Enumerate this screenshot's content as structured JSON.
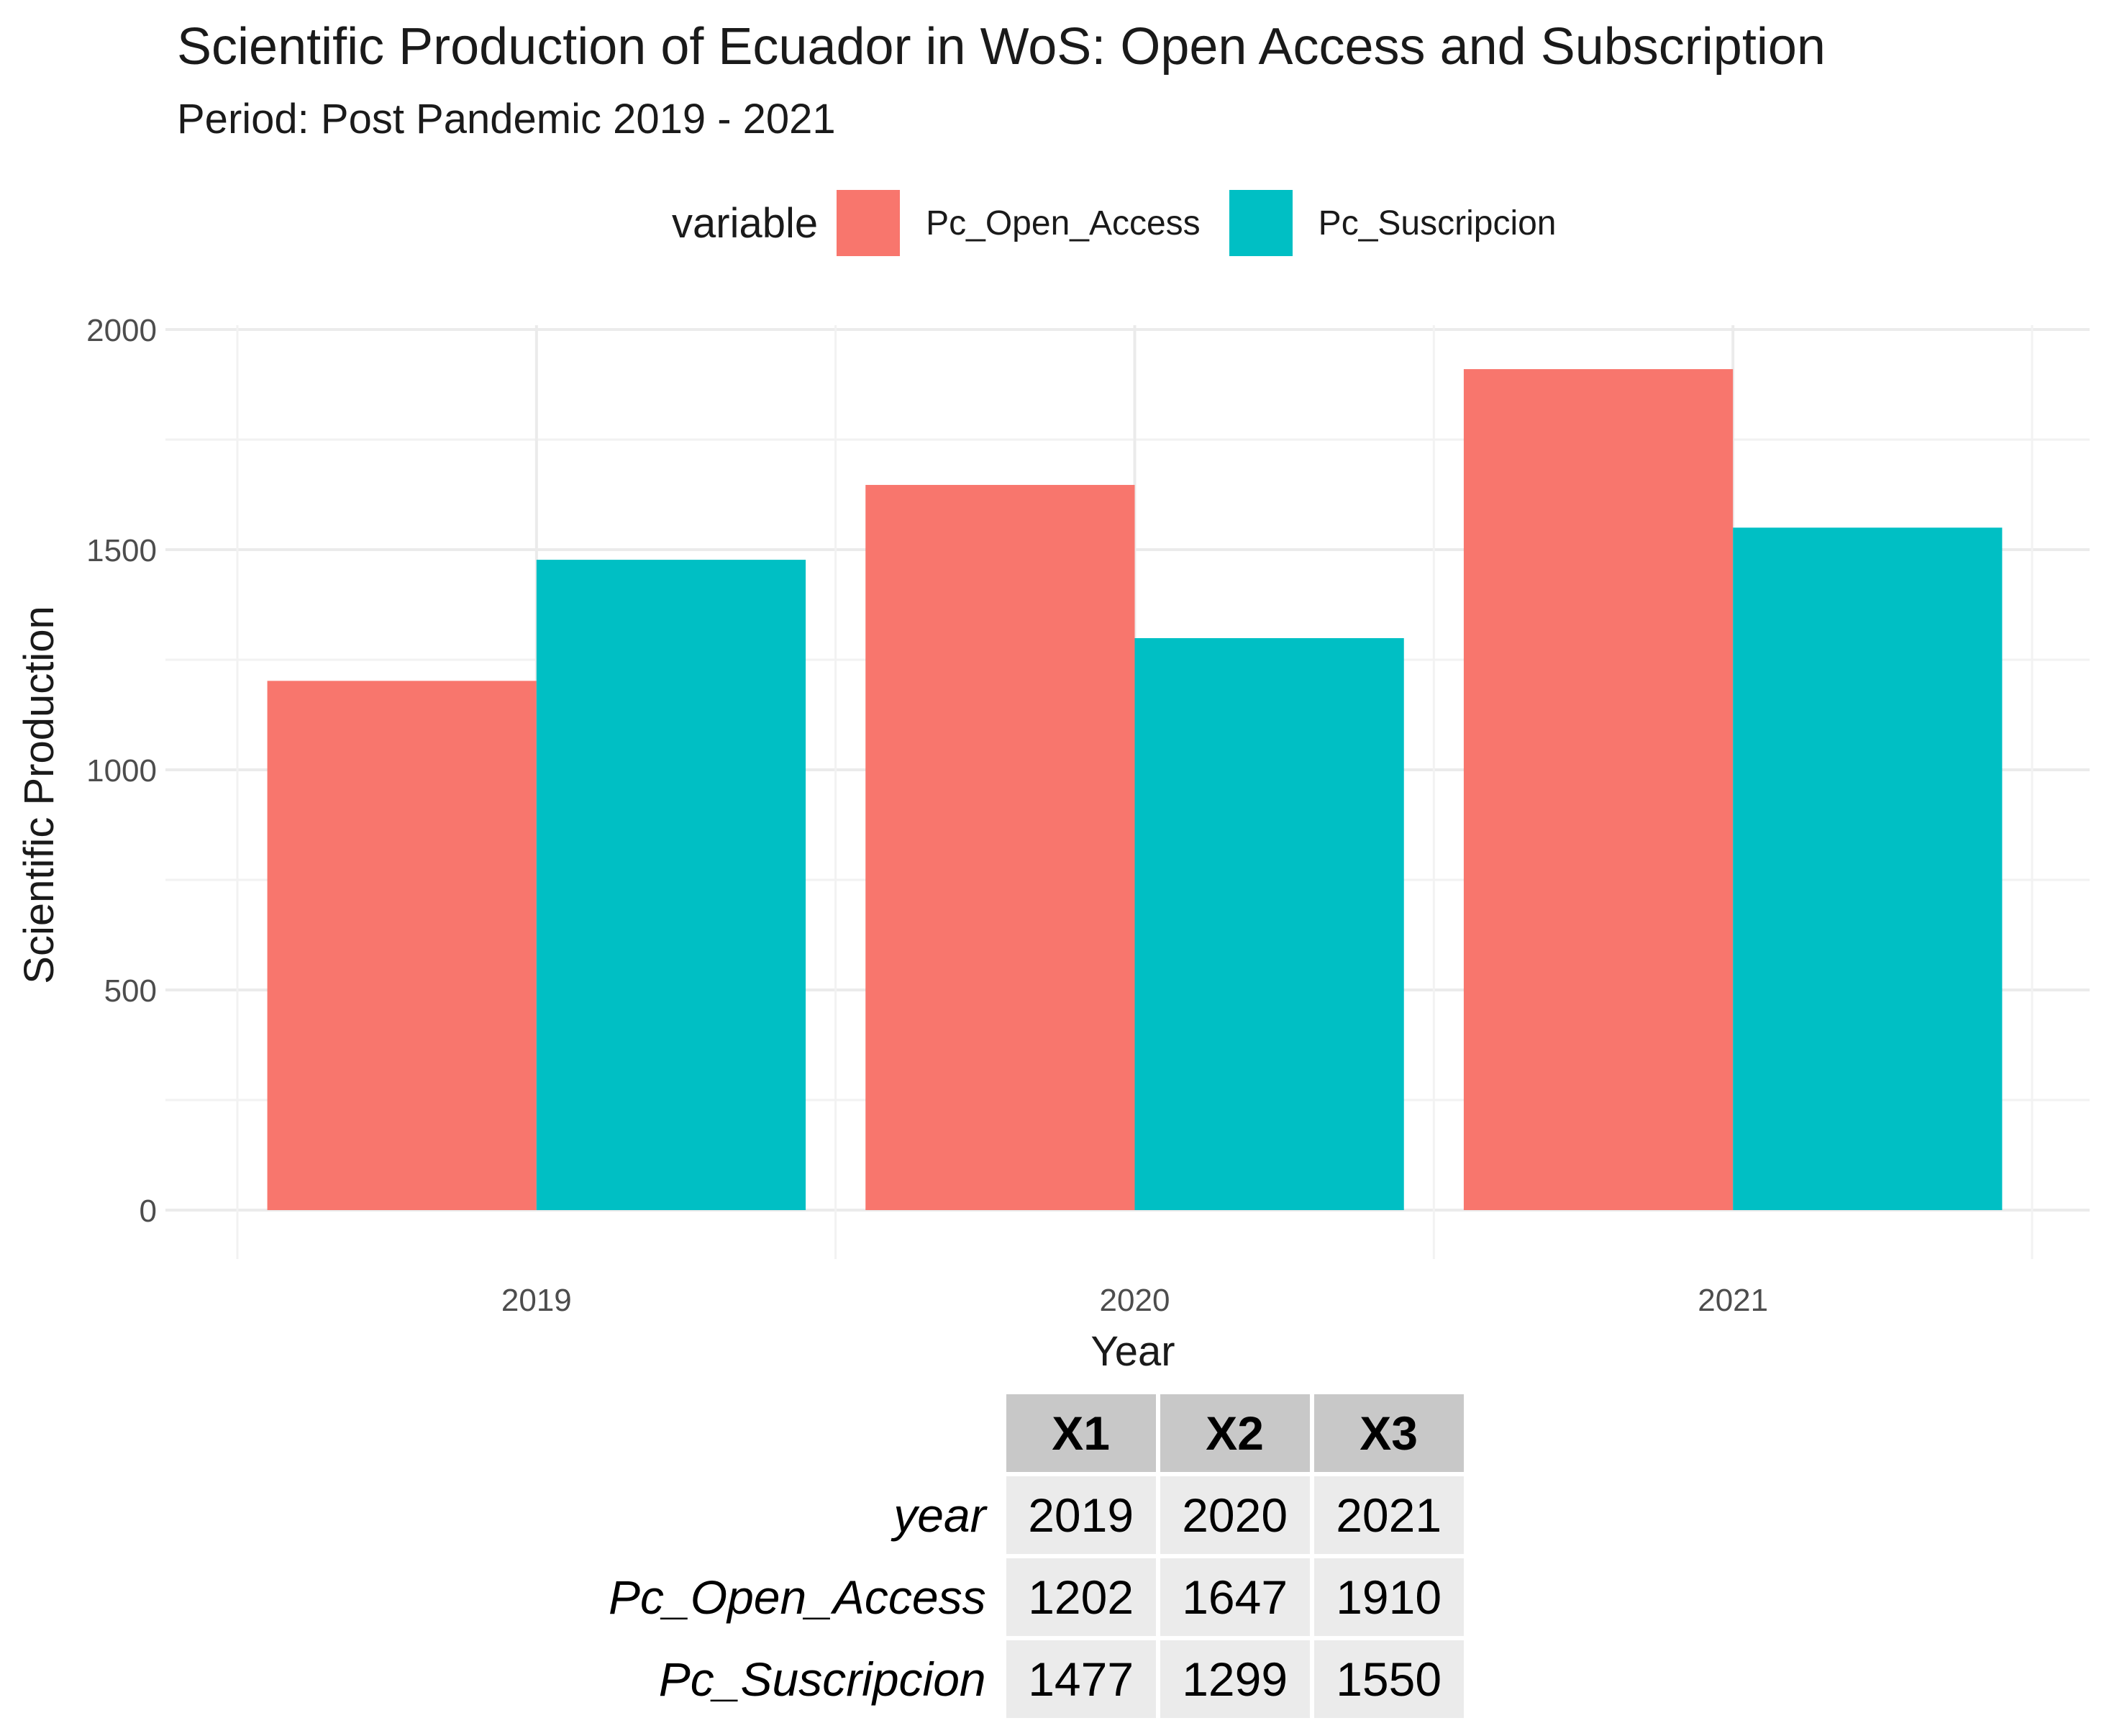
{
  "chart_data": {
    "type": "bar",
    "title": "Scientific Production of Ecuador in WoS: Open Access and Subscription",
    "subtitle": "Period: Post Pandemic 2019 - 2021",
    "xlabel": "Year",
    "ylabel": "Scientific Production",
    "categories": [
      "2019",
      "2020",
      "2021"
    ],
    "series": [
      {
        "name": "Pc_Open_Access",
        "color": "#F8766D",
        "values": [
          1202,
          1647,
          1910
        ]
      },
      {
        "name": "Pc_Suscripcion",
        "color": "#00BFC4",
        "values": [
          1477,
          1299,
          1550
        ]
      }
    ],
    "ylim": [
      0,
      2000
    ],
    "yticks": [
      0,
      500,
      1000,
      1500,
      2000
    ],
    "grid": true,
    "legend": {
      "title": "variable",
      "position": "top"
    }
  },
  "table": {
    "columns": [
      "X1",
      "X2",
      "X3"
    ],
    "rows": [
      {
        "label": "year",
        "cells": [
          "2019",
          "2020",
          "2021"
        ]
      },
      {
        "label": "Pc_Open_Access",
        "cells": [
          "1202",
          "1647",
          "1910"
        ]
      },
      {
        "label": "Pc_Suscripcion",
        "cells": [
          "1477",
          "1299",
          "1550"
        ]
      }
    ]
  }
}
